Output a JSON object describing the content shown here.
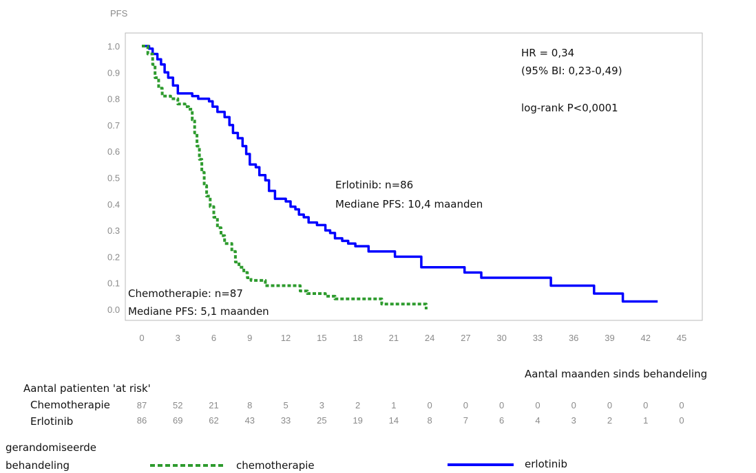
{
  "chart_data": {
    "type": "line",
    "ylabel": "PFS",
    "xlabel": "Aantal maanden sinds behandeling",
    "xlim": [
      0,
      45
    ],
    "ylim": [
      0,
      1.0
    ],
    "x_ticks": [
      "0",
      "3",
      "6",
      "9",
      "12",
      "15",
      "18",
      "21",
      "24",
      "27",
      "30",
      "33",
      "36",
      "39",
      "42",
      "45"
    ],
    "y_ticks": [
      "0.0",
      "0.1",
      "0.2",
      "0.3",
      "0.4",
      "0.5",
      "0.6",
      "0.7",
      "0.8",
      "0.9",
      "1.0"
    ],
    "grid": false,
    "series": [
      {
        "name": "erlotinib",
        "color": "#0000ff",
        "style": "solid",
        "points": [
          [
            0,
            1.0
          ],
          [
            0.6,
            0.99
          ],
          [
            0.9,
            0.97
          ],
          [
            1.3,
            0.95
          ],
          [
            1.6,
            0.93
          ],
          [
            1.9,
            0.9
          ],
          [
            2.2,
            0.88
          ],
          [
            2.6,
            0.85
          ],
          [
            3.0,
            0.82
          ],
          [
            4.2,
            0.81
          ],
          [
            4.7,
            0.8
          ],
          [
            5.6,
            0.79
          ],
          [
            5.9,
            0.77
          ],
          [
            6.3,
            0.75
          ],
          [
            6.9,
            0.73
          ],
          [
            7.3,
            0.7
          ],
          [
            7.6,
            0.67
          ],
          [
            8.0,
            0.65
          ],
          [
            8.4,
            0.62
          ],
          [
            8.7,
            0.59
          ],
          [
            9.0,
            0.55
          ],
          [
            9.5,
            0.54
          ],
          [
            9.8,
            0.51
          ],
          [
            10.3,
            0.49
          ],
          [
            10.6,
            0.45
          ],
          [
            11.1,
            0.42
          ],
          [
            12.0,
            0.41
          ],
          [
            12.4,
            0.39
          ],
          [
            12.8,
            0.38
          ],
          [
            13.1,
            0.36
          ],
          [
            13.5,
            0.35
          ],
          [
            13.9,
            0.33
          ],
          [
            14.6,
            0.32
          ],
          [
            15.3,
            0.3
          ],
          [
            15.7,
            0.29
          ],
          [
            16.1,
            0.27
          ],
          [
            16.7,
            0.26
          ],
          [
            17.2,
            0.25
          ],
          [
            17.8,
            0.24
          ],
          [
            18.9,
            0.22
          ],
          [
            20.6,
            0.22
          ],
          [
            21.1,
            0.2
          ],
          [
            22.8,
            0.2
          ],
          [
            23.3,
            0.16
          ],
          [
            26.4,
            0.16
          ],
          [
            26.9,
            0.14
          ],
          [
            27.8,
            0.14
          ],
          [
            28.3,
            0.12
          ],
          [
            33.7,
            0.12
          ],
          [
            34.1,
            0.09
          ],
          [
            37.2,
            0.09
          ],
          [
            37.7,
            0.06
          ],
          [
            39.6,
            0.06
          ],
          [
            40.1,
            0.03
          ],
          [
            43.0,
            0.03
          ]
        ]
      },
      {
        "name": "chemotherapie",
        "color": "#2e9b2e",
        "style": "dotted",
        "points": [
          [
            0,
            1.0
          ],
          [
            0.5,
            0.97
          ],
          [
            0.9,
            0.93
          ],
          [
            1.1,
            0.88
          ],
          [
            1.4,
            0.84
          ],
          [
            1.7,
            0.81
          ],
          [
            2.4,
            0.8
          ],
          [
            3.0,
            0.78
          ],
          [
            3.6,
            0.77
          ],
          [
            3.9,
            0.76
          ],
          [
            4.2,
            0.72
          ],
          [
            4.4,
            0.67
          ],
          [
            4.6,
            0.62
          ],
          [
            4.8,
            0.57
          ],
          [
            5.0,
            0.52
          ],
          [
            5.2,
            0.47
          ],
          [
            5.4,
            0.43
          ],
          [
            5.7,
            0.39
          ],
          [
            6.0,
            0.35
          ],
          [
            6.3,
            0.31
          ],
          [
            6.6,
            0.28
          ],
          [
            6.9,
            0.25
          ],
          [
            7.5,
            0.22
          ],
          [
            7.8,
            0.18
          ],
          [
            8.1,
            0.16
          ],
          [
            8.5,
            0.14
          ],
          [
            8.8,
            0.12
          ],
          [
            9.1,
            0.11
          ],
          [
            9.9,
            0.11
          ],
          [
            10.3,
            0.09
          ],
          [
            12.8,
            0.09
          ],
          [
            13.2,
            0.07
          ],
          [
            13.8,
            0.06
          ],
          [
            15.3,
            0.05
          ],
          [
            16.1,
            0.04
          ],
          [
            19.5,
            0.04
          ],
          [
            20.0,
            0.02
          ],
          [
            23.5,
            0.02
          ],
          [
            23.7,
            0.0
          ]
        ]
      }
    ],
    "annotations": {
      "hr": "HR = 0,34",
      "ci": "(95% BI: 0,23-0,49)",
      "logrank": "log-rank P<0,0001",
      "erlotinib_n": "Erlotinib: n=86",
      "erlotinib_median": "Mediane PFS: 10,4 maanden",
      "chemo_n": "Chemotherapie: n=87",
      "chemo_median": "Mediane PFS: 5,1 maanden"
    },
    "at_risk": {
      "title": "Aantal patienten 'at risk'",
      "rows": [
        {
          "name": "Chemotherapie",
          "values": [
            "87",
            "52",
            "21",
            "8",
            "5",
            "3",
            "2",
            "1",
            "0",
            "0",
            "0",
            "0",
            "0",
            "0",
            "0",
            "0"
          ]
        },
        {
          "name": "Erlotinib",
          "values": [
            "86",
            "69",
            "62",
            "43",
            "33",
            "25",
            "19",
            "14",
            "8",
            "7",
            "6",
            "4",
            "3",
            "2",
            "1",
            "0"
          ]
        }
      ]
    },
    "legend": {
      "title_line1": "gerandomiseerde",
      "title_line2": "behandeling",
      "items": [
        {
          "label": "chemotherapie",
          "color": "#2e9b2e",
          "style": "dotted"
        },
        {
          "label": "erlotinib",
          "color": "#0000ff",
          "style": "solid"
        }
      ]
    }
  }
}
